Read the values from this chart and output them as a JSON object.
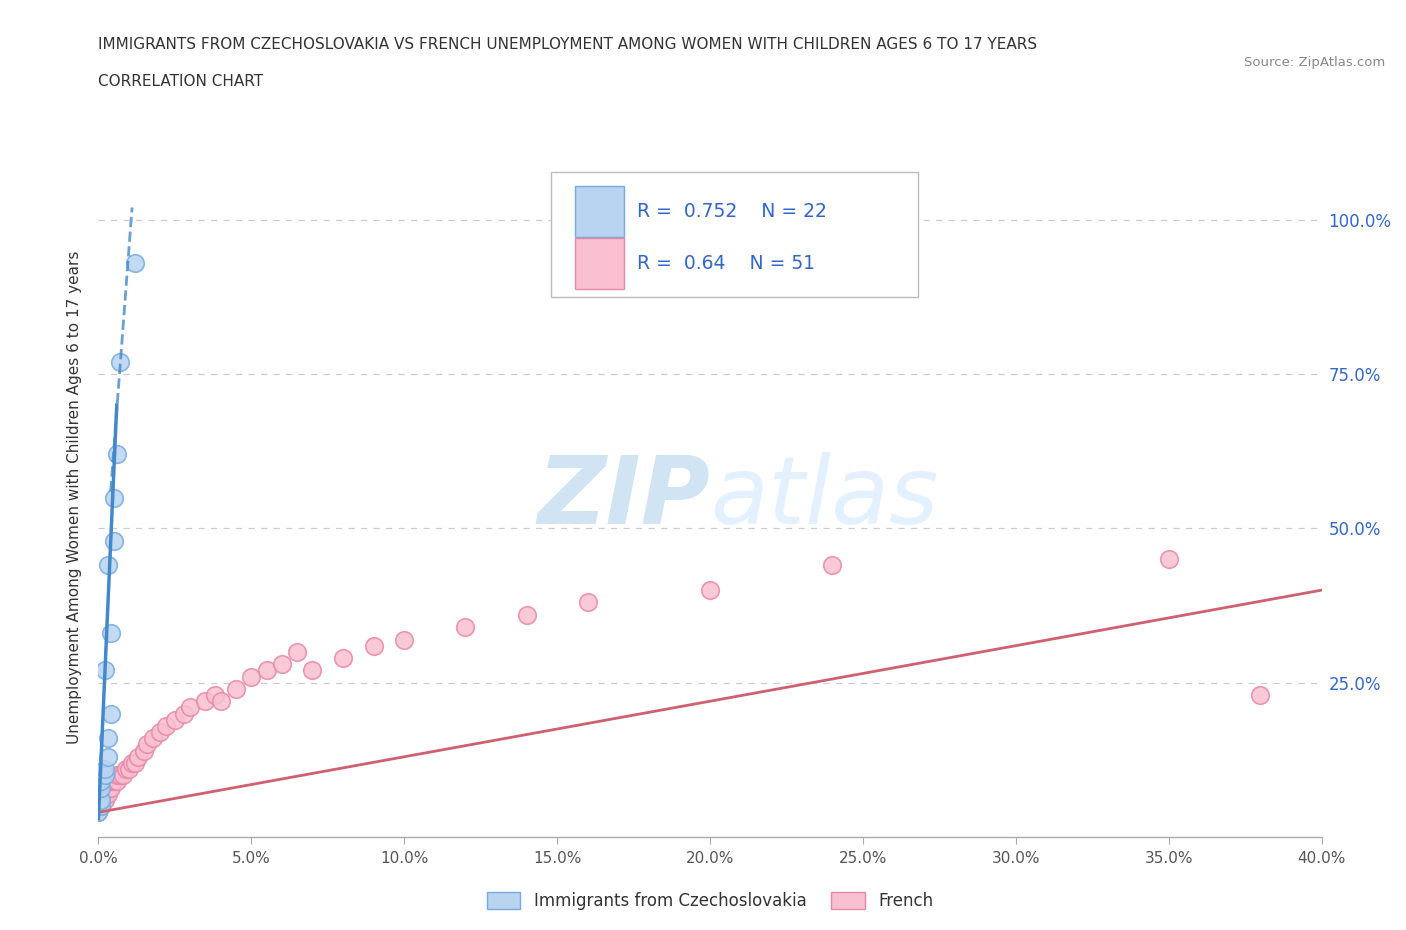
{
  "title_line1": "IMMIGRANTS FROM CZECHOSLOVAKIA VS FRENCH UNEMPLOYMENT AMONG WOMEN WITH CHILDREN AGES 6 TO 17 YEARS",
  "title_line2": "CORRELATION CHART",
  "source_text": "Source: ZipAtlas.com",
  "ylabel": "Unemployment Among Women with Children Ages 6 to 17 years",
  "xlim": [
    0.0,
    0.4
  ],
  "ylim": [
    0.0,
    1.1
  ],
  "xtick_labels": [
    "0.0%",
    "5.0%",
    "10.0%",
    "15.0%",
    "20.0%",
    "25.0%",
    "30.0%",
    "35.0%",
    "40.0%"
  ],
  "xtick_values": [
    0.0,
    0.05,
    0.1,
    0.15,
    0.2,
    0.25,
    0.3,
    0.35,
    0.4
  ],
  "ytick_labels": [
    "25.0%",
    "50.0%",
    "75.0%",
    "100.0%"
  ],
  "ytick_values": [
    0.25,
    0.5,
    0.75,
    1.0
  ],
  "blue_R": 0.752,
  "blue_N": 22,
  "pink_R": 0.64,
  "pink_N": 51,
  "blue_color": "#b8d4f0",
  "blue_edge": "#78aae0",
  "pink_color": "#f8c0d0",
  "pink_edge": "#e888a8",
  "blue_line_color": "#4488cc",
  "pink_line_color": "#d06070",
  "legend_text_color": "#3366cc",
  "watermark_color": "#d0e4f4",
  "background_color": "#ffffff",
  "grid_color": "#cccccc",
  "blue_scatter_x": [
    0.0,
    0.0,
    0.0,
    0.0,
    0.0,
    0.001,
    0.001,
    0.001,
    0.001,
    0.002,
    0.002,
    0.002,
    0.003,
    0.003,
    0.003,
    0.004,
    0.004,
    0.005,
    0.005,
    0.006,
    0.007,
    0.012
  ],
  "blue_scatter_y": [
    0.04,
    0.05,
    0.06,
    0.06,
    0.07,
    0.05,
    0.06,
    0.08,
    0.09,
    0.1,
    0.11,
    0.27,
    0.13,
    0.16,
    0.44,
    0.2,
    0.33,
    0.48,
    0.55,
    0.62,
    0.77,
    0.93
  ],
  "pink_scatter_x": [
    0.0,
    0.0,
    0.0,
    0.0,
    0.001,
    0.001,
    0.001,
    0.001,
    0.002,
    0.002,
    0.003,
    0.003,
    0.004,
    0.004,
    0.005,
    0.006,
    0.006,
    0.007,
    0.008,
    0.009,
    0.01,
    0.011,
    0.012,
    0.013,
    0.015,
    0.016,
    0.018,
    0.02,
    0.022,
    0.025,
    0.028,
    0.03,
    0.035,
    0.038,
    0.04,
    0.045,
    0.05,
    0.055,
    0.06,
    0.065,
    0.07,
    0.08,
    0.09,
    0.1,
    0.12,
    0.14,
    0.16,
    0.2,
    0.24,
    0.35,
    0.38
  ],
  "pink_scatter_y": [
    0.04,
    0.05,
    0.06,
    0.07,
    0.05,
    0.06,
    0.07,
    0.08,
    0.06,
    0.07,
    0.07,
    0.08,
    0.08,
    0.09,
    0.09,
    0.09,
    0.1,
    0.1,
    0.1,
    0.11,
    0.11,
    0.12,
    0.12,
    0.13,
    0.14,
    0.15,
    0.16,
    0.17,
    0.18,
    0.19,
    0.2,
    0.21,
    0.22,
    0.23,
    0.22,
    0.24,
    0.26,
    0.27,
    0.28,
    0.3,
    0.27,
    0.29,
    0.31,
    0.32,
    0.34,
    0.36,
    0.38,
    0.4,
    0.44,
    0.45,
    0.23
  ],
  "blue_line_x": [
    0.0,
    0.012
  ],
  "blue_line_y_start": 0.03,
  "pink_line_x": [
    0.0,
    0.4
  ],
  "pink_line_y": [
    0.04,
    0.4
  ]
}
